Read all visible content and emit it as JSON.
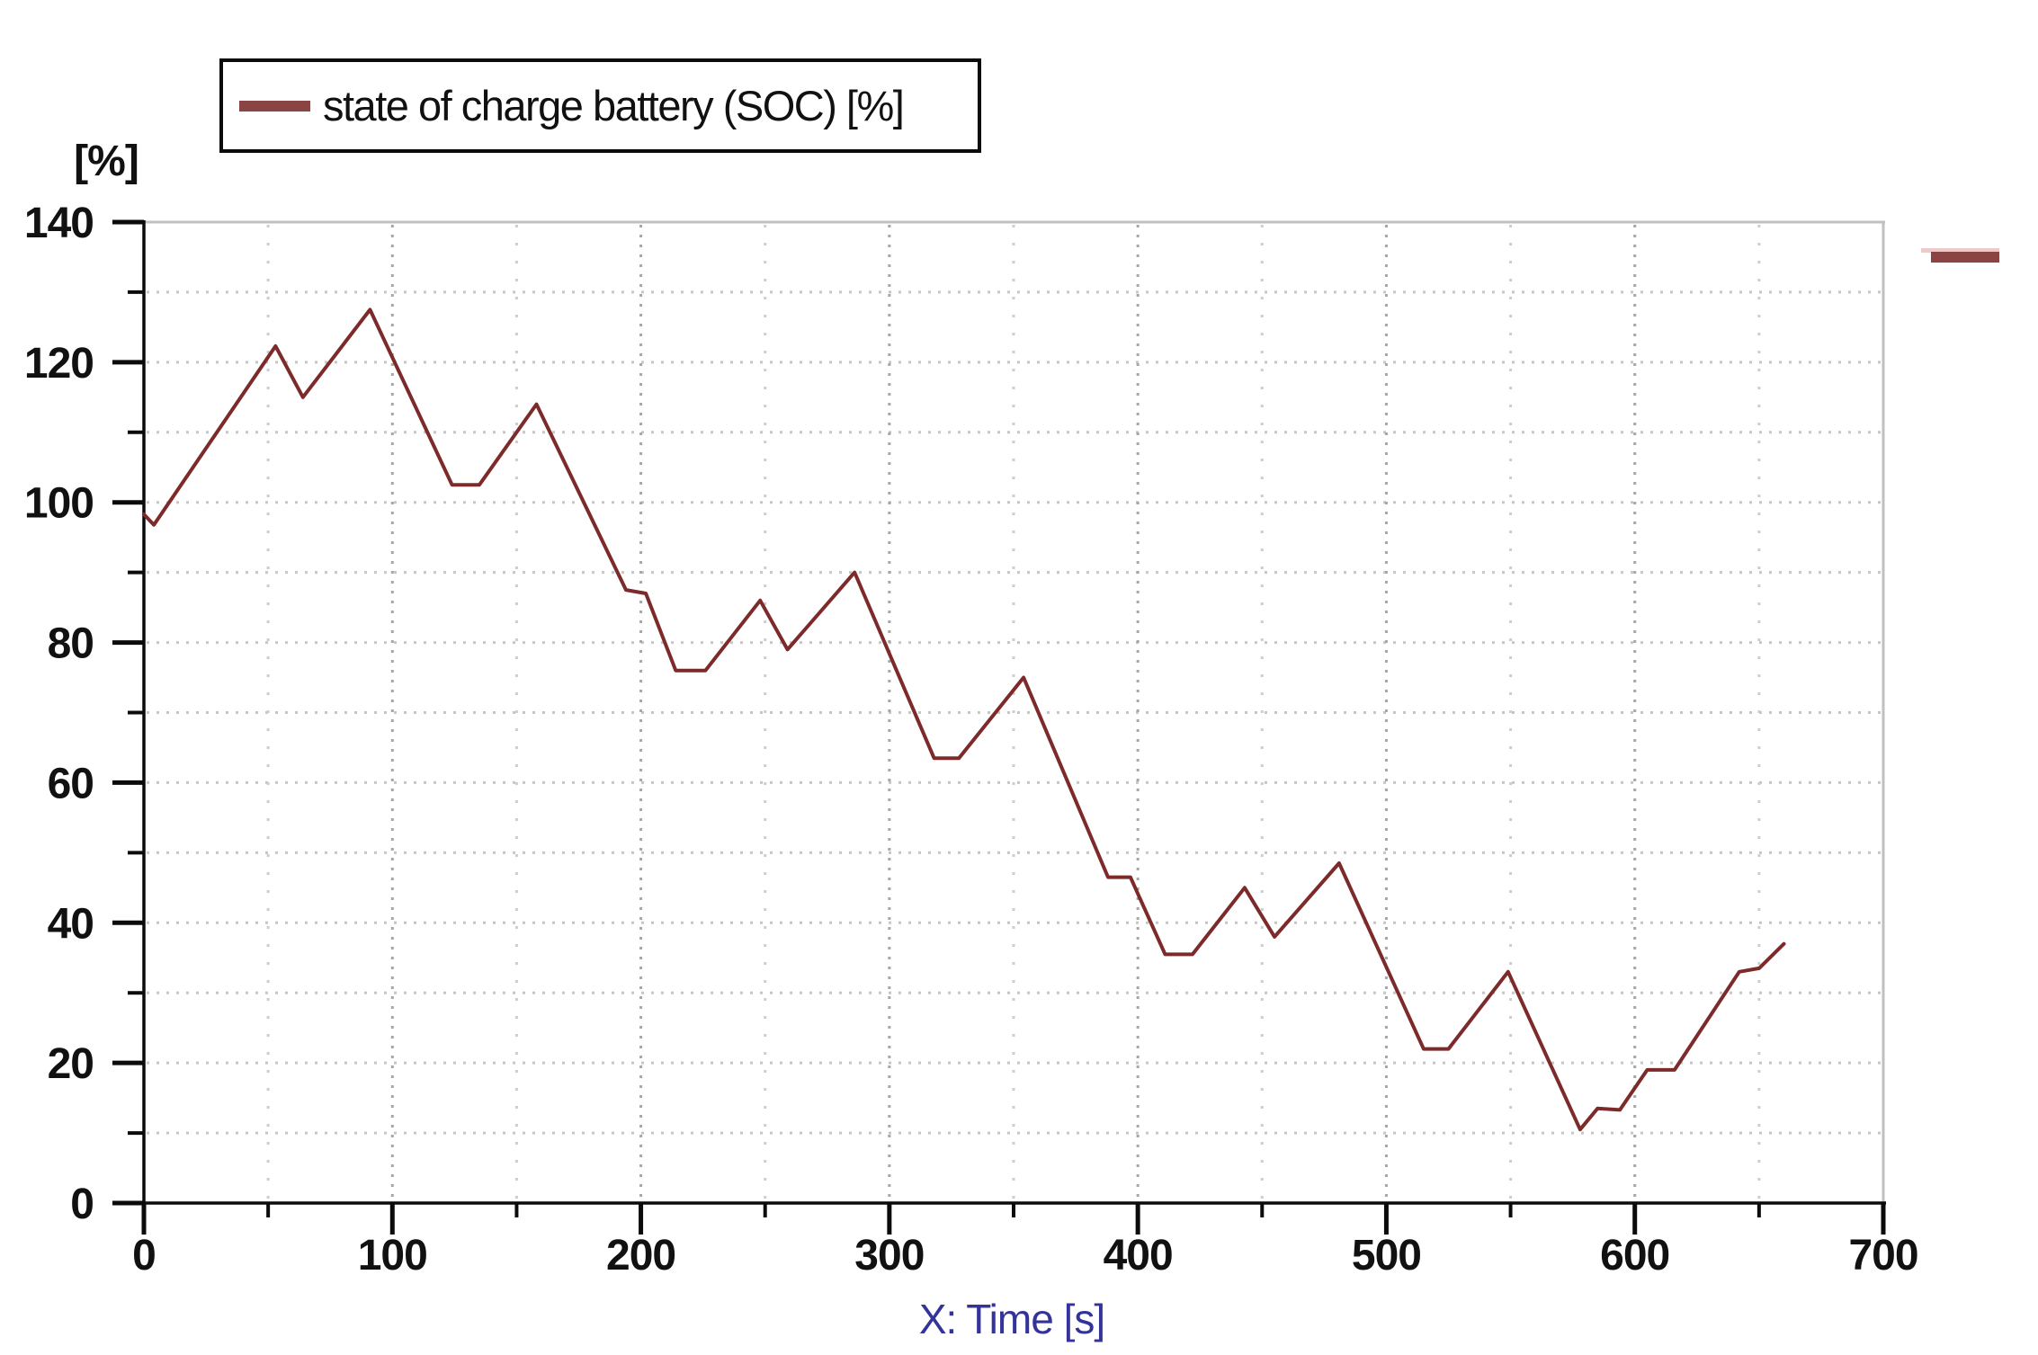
{
  "legend": {
    "label": "state of charge battery (SOC) [%]",
    "dash_color": "#8b4444"
  },
  "y_axis": {
    "unit_label": "[%]",
    "range": [
      0,
      140
    ],
    "tick_labels": [
      "0",
      "20",
      "40",
      "60",
      "80",
      "100",
      "120",
      "140"
    ],
    "major_tick_step": 20,
    "minor_tick_step": 10
  },
  "x_axis": {
    "title": "X: Time [s]",
    "title_color": "#333399",
    "range": [
      0,
      700
    ],
    "tick_labels": [
      "0",
      "100",
      "200",
      "300",
      "400",
      "500",
      "600",
      "700"
    ],
    "major_tick_step": 100,
    "minor_tick_step": 50
  },
  "decorations": {
    "right_dash_color": "#8b4343"
  },
  "chart_data": {
    "type": "line",
    "title": "",
    "xlabel": "X: Time [s]",
    "ylabel": "[%]",
    "xlim": [
      0,
      700
    ],
    "ylim": [
      0,
      140
    ],
    "grid": "dotted, horizontal every 10, vertical every 50",
    "legend_position": "top-left",
    "series": [
      {
        "name": "state of charge battery (SOC) [%]",
        "color": "#7c2a2a",
        "points": [
          [
            0,
            98.3
          ],
          [
            4,
            96.8
          ],
          [
            53,
            122.3
          ],
          [
            64,
            115
          ],
          [
            91,
            127.5
          ],
          [
            124,
            102.5
          ],
          [
            135,
            102.5
          ],
          [
            158,
            114
          ],
          [
            194,
            87.5
          ],
          [
            202,
            87
          ],
          [
            214,
            76
          ],
          [
            226,
            76
          ],
          [
            248,
            86
          ],
          [
            259,
            79
          ],
          [
            286,
            90
          ],
          [
            318,
            63.5
          ],
          [
            328,
            63.5
          ],
          [
            354,
            75
          ],
          [
            388,
            46.5
          ],
          [
            397,
            46.5
          ],
          [
            411,
            35.5
          ],
          [
            422,
            35.5
          ],
          [
            443,
            45
          ],
          [
            455,
            38
          ],
          [
            481,
            48.5
          ],
          [
            515,
            22
          ],
          [
            525,
            22
          ],
          [
            549,
            33
          ],
          [
            578,
            10.5
          ],
          [
            585,
            13.5
          ],
          [
            594,
            13.3
          ],
          [
            605,
            19
          ],
          [
            616,
            19
          ],
          [
            642,
            33
          ],
          [
            650,
            33.5
          ],
          [
            660,
            37
          ]
        ]
      }
    ]
  },
  "style": {
    "axis_color": "#0b0b0b",
    "border_gray": "#c0c0c0",
    "grid_h_color": "#c6c6c6",
    "grid_v_major_color": "#a6a6a6",
    "grid_v_minor_color": "#cdcdcd"
  }
}
